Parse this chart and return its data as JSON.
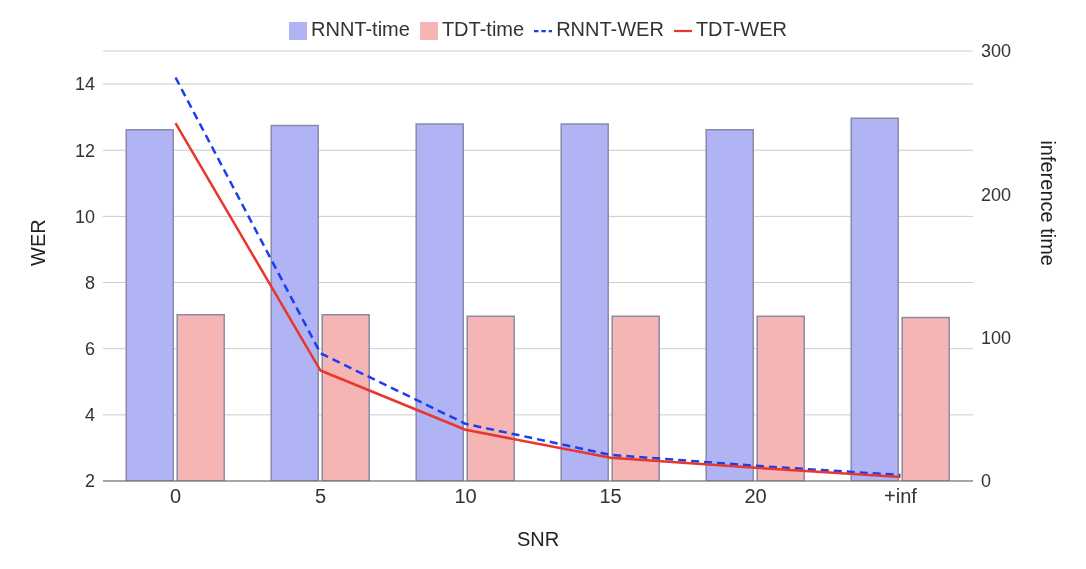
{
  "chart_data": {
    "type": "bar",
    "categories": [
      "0",
      "5",
      "10",
      "15",
      "20",
      "+inf"
    ],
    "xlabel": "SNR",
    "ylabel": "WER",
    "y2label": "inference time",
    "ylim": [
      2,
      15
    ],
    "yticks": [
      2,
      4,
      6,
      8,
      10,
      12,
      14
    ],
    "y2lim": [
      0,
      300
    ],
    "y2ticks": [
      0,
      100,
      200,
      300
    ],
    "grid": "y",
    "legend": "top",
    "marker": "none",
    "series": [
      {
        "name": "RNNT-time",
        "axis": "y2",
        "color": "#b0b4f5",
        "values": [
          245,
          248,
          249,
          249,
          245,
          253
        ]
      },
      {
        "name": "TDT-time",
        "axis": "y2",
        "color": "#f5b5b5",
        "values": [
          116,
          116,
          115,
          115,
          115,
          114
        ]
      },
      {
        "name": "RNNT-WER",
        "type": "line",
        "color": "#1a3ef0",
        "line_style": "dashed",
        "values": [
          14.2,
          5.86,
          3.73,
          2.79,
          2.46,
          2.18
        ]
      },
      {
        "name": "TDT-WER",
        "type": "line",
        "color": "#e8372c",
        "line_style": "solid",
        "values": [
          12.82,
          5.34,
          3.55,
          2.7,
          2.4,
          2.12
        ]
      }
    ]
  }
}
